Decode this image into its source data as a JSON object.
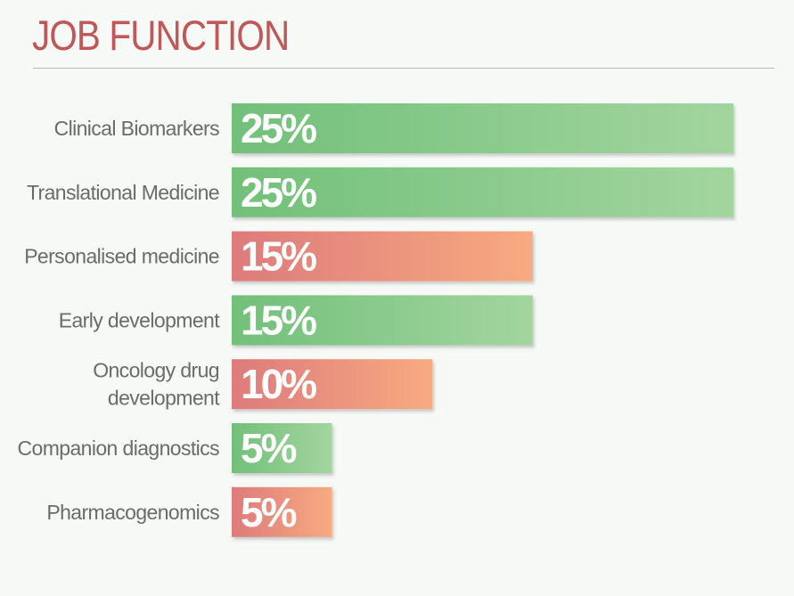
{
  "title": "JOB FUNCTION",
  "colors": {
    "title": "#c0585a",
    "label": "#6b6b6b",
    "value_text": "#ffffff",
    "green_start": "#72c07a",
    "green_end": "#a3d59f",
    "red_start": "#dd7b7c",
    "red_end": "#f8aa80"
  },
  "chart_data": {
    "type": "bar",
    "orientation": "horizontal",
    "title": "JOB FUNCTION",
    "categories": [
      "Clinical Biomarkers",
      "Translational Medicine",
      "Personalised medicine",
      "Early development",
      "Oncology drug development",
      "Companion diagnostics",
      "Pharmacogenomics"
    ],
    "category_lines": [
      [
        "Clinical Biomarkers"
      ],
      [
        "Translational Medicine"
      ],
      [
        "Personalised medicine"
      ],
      [
        "Early development"
      ],
      [
        "Oncology drug",
        "development"
      ],
      [
        "Companion diagnostics"
      ],
      [
        "Pharmacogenomics"
      ]
    ],
    "values": [
      25,
      25,
      15,
      15,
      10,
      5,
      5
    ],
    "value_labels": [
      "25%",
      "25%",
      "15%",
      "15%",
      "10%",
      "5%",
      "5%"
    ],
    "bar_colors": [
      "green",
      "green",
      "red",
      "green",
      "red",
      "green",
      "red"
    ],
    "xlim": [
      0,
      25
    ],
    "unit": "%",
    "grid": false,
    "legend": "none"
  }
}
